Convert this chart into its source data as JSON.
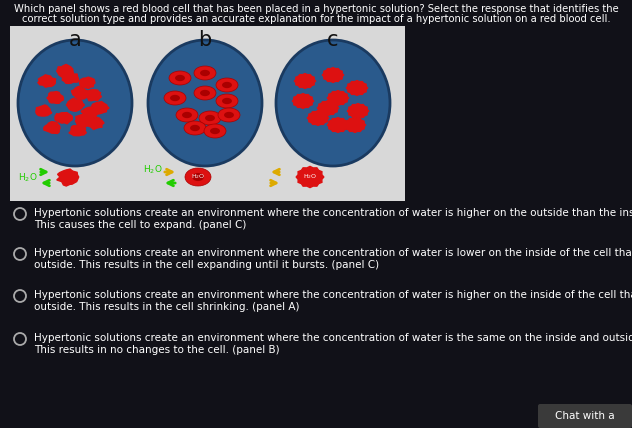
{
  "background_color": "#111118",
  "title_text1": "Which panel shows a red blood cell that has been placed in a hypertonic solution? Select the response that identifies the",
  "title_text2": "correct solution type and provides an accurate explanation for the impact of a hypertonic solution on a red blood cell.",
  "title_color": "#ffffff",
  "title_fontsize": 7.2,
  "panel_labels": [
    "a",
    "b",
    "c"
  ],
  "panel_bg": "#d8d8d8",
  "circle_color": "#2a5a8c",
  "circle_border": "#1a3a60",
  "answer_options": [
    "Hypertonic solutions create an environment where the concentration of water is higher on the outside than the inside.\nThis causes the cell to expand. (panel C)",
    "Hypertonic solutions create an environment where the concentration of water is lower on the inside of the cell than the\noutside. This results in the cell expanding until it bursts. (panel C)",
    "Hypertonic solutions create an environment where the concentration of water is higher on the inside of the cell than the\noutside. This results in the cell shrinking. (panel A)",
    "Hypertonic solutions create an environment where the concentration of water is the same on the inside and outside.\nThis results in no changes to the cell. (panel B)"
  ],
  "answer_color": "#ffffff",
  "answer_fontsize": 7.5,
  "radio_color": "#aaaaaa",
  "chat_button_text": "Chat with a",
  "rbc_red": "#dd1111",
  "rbc_dark": "#aa0000",
  "rbc_bright": "#ff2222"
}
